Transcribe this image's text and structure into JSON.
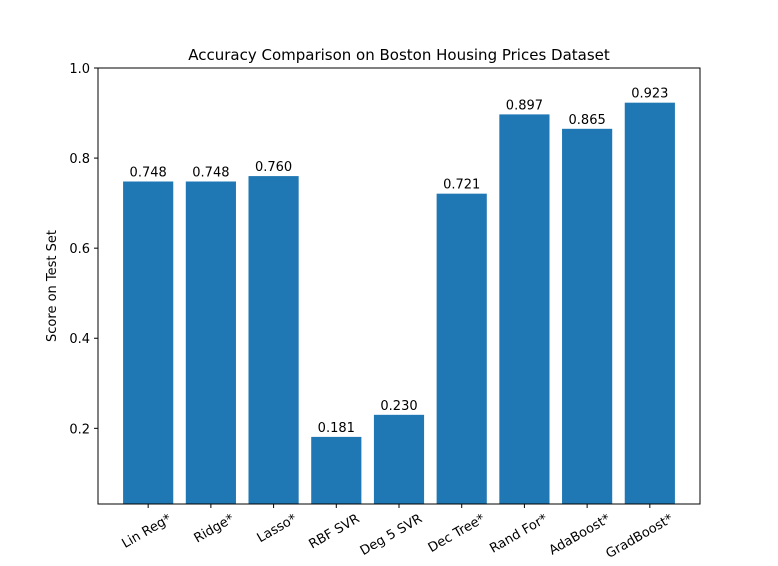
{
  "chart_data": {
    "type": "bar",
    "title": "Accuracy Comparison on Boston Housing Prices Dataset",
    "xlabel": "",
    "ylabel": "Score on Test Set",
    "categories": [
      "Lin Reg*",
      "Ridge*",
      "Lasso*",
      "RBF SVR",
      "Deg 5 SVR",
      "Dec Tree*",
      "Rand For*",
      "AdaBoost*",
      "GradBoost*"
    ],
    "values": [
      0.748,
      0.748,
      0.76,
      0.181,
      0.23,
      0.721,
      0.897,
      0.865,
      0.923
    ],
    "value_labels": [
      "0.748",
      "0.748",
      "0.760",
      "0.181",
      "0.230",
      "0.721",
      "0.897",
      "0.865",
      "0.923"
    ],
    "ylim": [
      0.032,
      1.0
    ],
    "yticks": [
      0.2,
      0.4,
      0.6,
      0.8,
      1.0
    ],
    "ytick_labels": [
      "0.2",
      "0.4",
      "0.6",
      "0.8",
      "1.0"
    ],
    "grid": false,
    "colors": {
      "bar": "#1f77b4"
    }
  }
}
